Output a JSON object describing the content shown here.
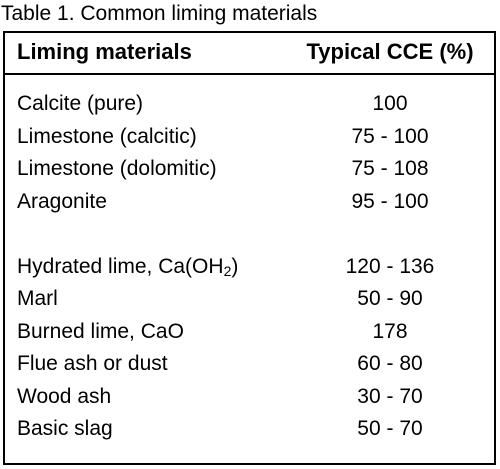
{
  "table": {
    "caption": "Table 1. Common liming materials",
    "headers": {
      "material": "Liming materials",
      "cce": "Typical CCE (%)"
    },
    "groups": [
      {
        "rows": [
          {
            "material": "Calcite (pure)",
            "cce": "100"
          },
          {
            "material": "Limestone (calcitic)",
            "cce": "75 - 100"
          },
          {
            "material": "Limestone (dolomitic)",
            "cce": "75 - 108"
          },
          {
            "material": "Aragonite",
            "cce": "95 - 100"
          }
        ]
      },
      {
        "rows": [
          {
            "material": "Hydrated lime, Ca(OH",
            "material_sub": "2",
            "material_suffix": ")",
            "cce": "120 - 136"
          },
          {
            "material": "Marl",
            "cce": "50 - 90"
          },
          {
            "material": "Burned lime, CaO",
            "cce": "178"
          },
          {
            "material": "Flue ash or dust",
            "cce": "60 - 80"
          },
          {
            "material": "Wood ash",
            "cce": "30 - 70"
          },
          {
            "material": "Basic slag",
            "cce": "50 - 70"
          }
        ]
      }
    ]
  }
}
